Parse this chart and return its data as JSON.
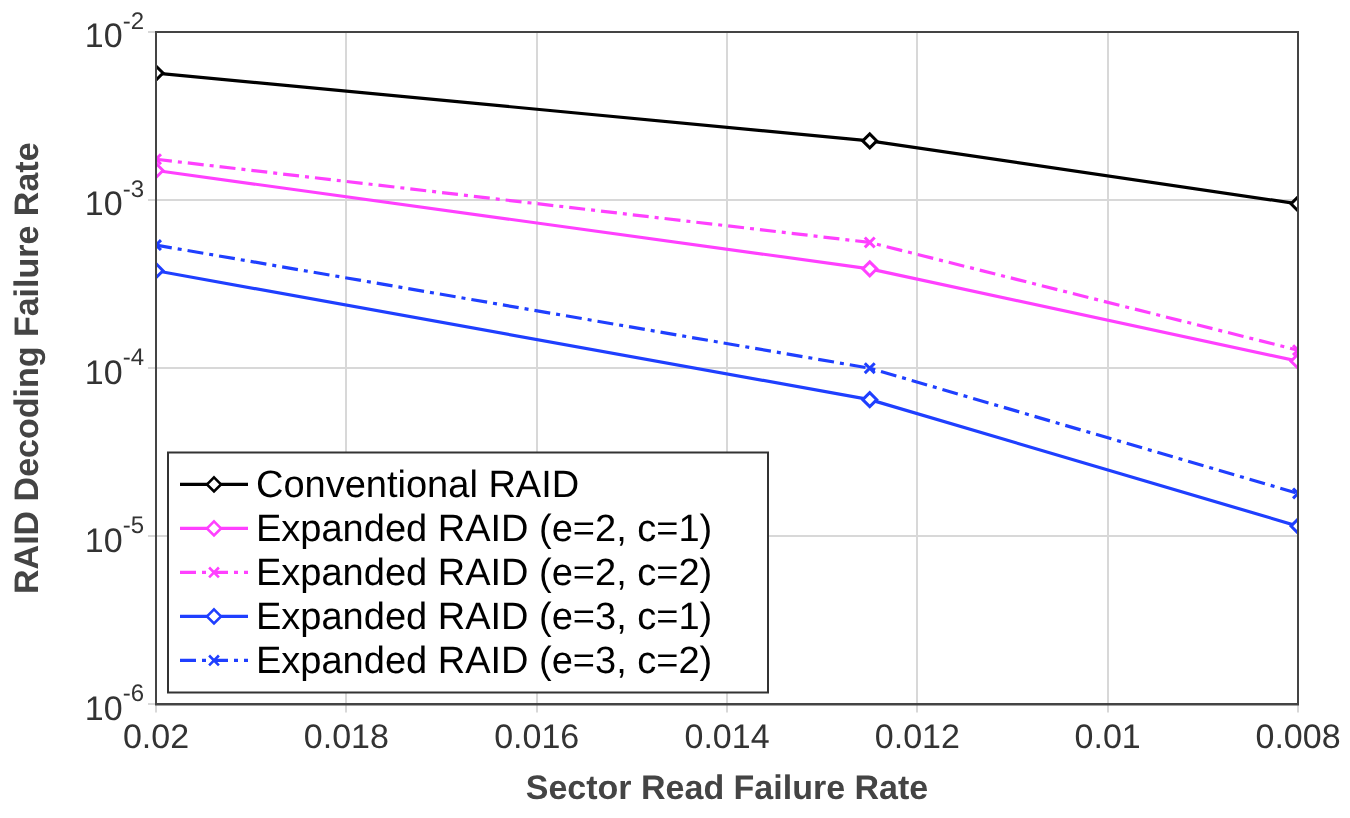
{
  "chart_data": {
    "type": "line",
    "xlabel": "Sector Read Failure Rate",
    "ylabel": "RAID Decoding Failure Rate",
    "x": [
      0.02,
      0.0125,
      0.008
    ],
    "series": [
      {
        "name": "Conventional RAID",
        "color": "#000000",
        "values": [
          0.0057,
          0.00225,
          0.00095
        ],
        "marker": "diamond",
        "line_style": "solid"
      },
      {
        "name": "Expanded RAID (e=2, c=1)",
        "color": "#ff40ff",
        "values": [
          0.0015,
          0.00039,
          0.00011
        ],
        "marker": "diamond",
        "line_style": "solid"
      },
      {
        "name": "Expanded RAID (e=2, c=2)",
        "color": "#ff40ff",
        "values": [
          0.00175,
          0.00056,
          0.000128
        ],
        "marker": "cross",
        "line_style": "dashed"
      },
      {
        "name": "Expanded RAID (e=3, c=1)",
        "color": "#1f3fff",
        "values": [
          0.00038,
          6.5e-05,
          1.15e-05
        ],
        "marker": "diamond",
        "line_style": "solid"
      },
      {
        "name": "Expanded RAID (e=3, c=2)",
        "color": "#1f3fff",
        "values": [
          0.00054,
          0.0001,
          1.8e-05
        ],
        "marker": "cross",
        "line_style": "dashed"
      }
    ],
    "xlim": [
      0.02,
      0.008
    ],
    "xticks": [
      0.02,
      0.018,
      0.016,
      0.014,
      0.012,
      0.01,
      0.008
    ],
    "ylim": [
      1e-06,
      0.01
    ],
    "yticks": [
      {
        "value": 1e-06,
        "label": "10$^{-6}$"
      },
      {
        "value": 1e-05,
        "label": "10$^{-5}$"
      },
      {
        "value": 0.0001,
        "label": "10$^{-4}$"
      },
      {
        "value": 0.001,
        "label": "10$^{-3}$"
      },
      {
        "value": 0.01,
        "label": "10$^{-2}$"
      }
    ],
    "log": "y",
    "grid": true,
    "legend": "bottom left"
  }
}
